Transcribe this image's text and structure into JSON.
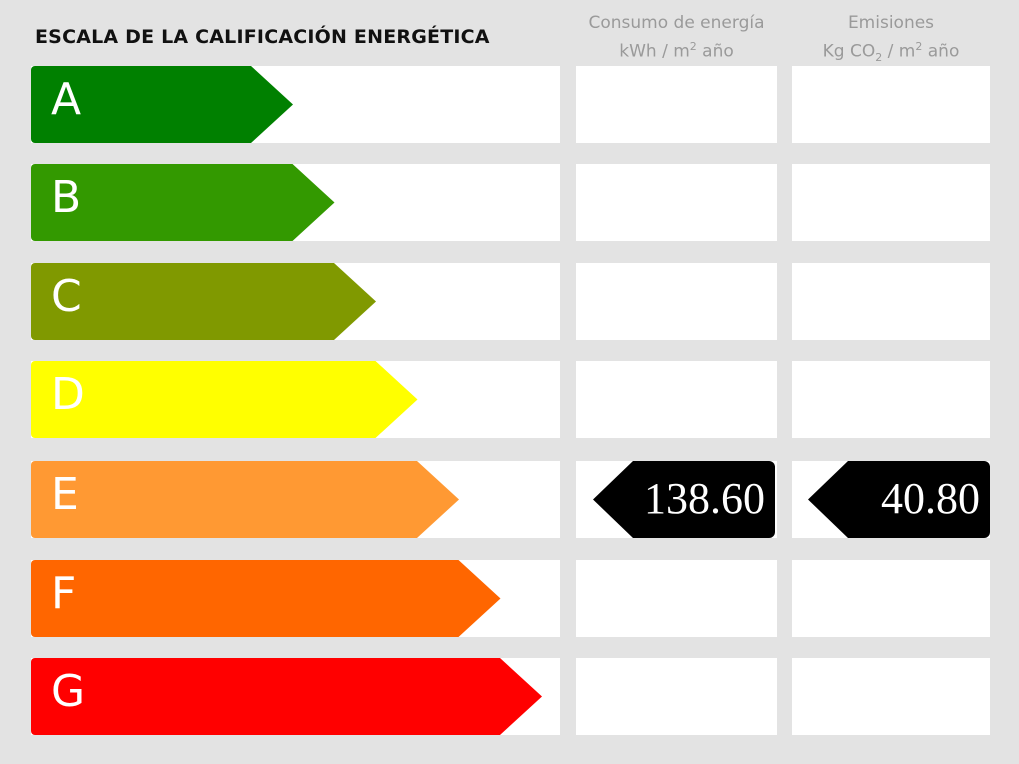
{
  "title": "ESCALA DE LA CALIFICACIÓN ENERGÉTICA",
  "columns": {
    "energy": {
      "line1": "Consumo de energía",
      "line2_pre": "kWh / m",
      "line2_sup": "2",
      "line2_post": " año"
    },
    "emissions": {
      "line1": "Emisiones",
      "line2_pre": "Kg CO",
      "line2_sub": "2",
      "line2_mid": " / m",
      "line2_sup": "2",
      "line2_post": " año"
    }
  },
  "ratings": [
    {
      "letter": "A",
      "color": "#008000"
    },
    {
      "letter": "B",
      "color": "#339900"
    },
    {
      "letter": "C",
      "color": "#809900"
    },
    {
      "letter": "D",
      "color": "#ffff00"
    },
    {
      "letter": "E",
      "color": "#ff9933"
    },
    {
      "letter": "F",
      "color": "#ff6600"
    },
    {
      "letter": "G",
      "color": "#ff0000"
    }
  ],
  "current_rating": "E",
  "energy_value": "138.60",
  "emissions_value": "40.80"
}
